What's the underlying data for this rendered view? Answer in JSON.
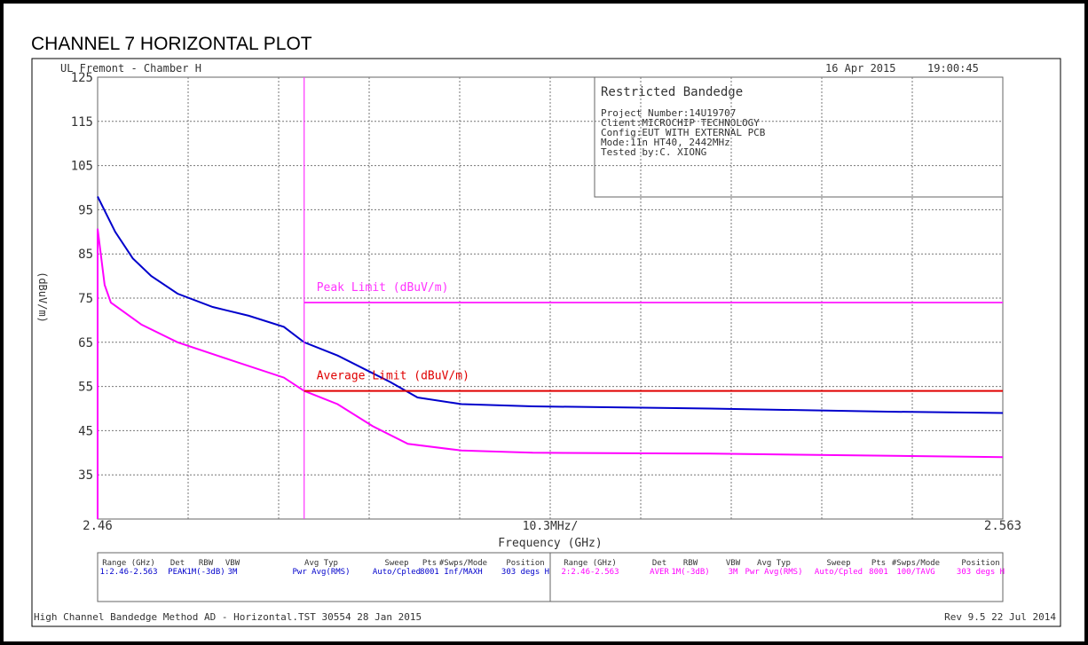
{
  "title": "CHANNEL 7 HORIZONTAL PLOT",
  "chart_data": {
    "type": "line",
    "header_left": "UL Fremont - Chamber H",
    "date": "16 Apr 2015",
    "time": "19:00:45",
    "info_title": "Restricted Bandedge",
    "info_lines": [
      "Project Number:14U19707",
      "Client:MICROCHIP TECHNOLOGY",
      "Config:EUT WITH EXTERNAL PCB",
      "Mode:11n HT40, 2442MHz",
      "Tested by:C. XIONG"
    ],
    "xlabel": "Frequency (GHz)",
    "ylabel": "(dBuV/m)",
    "xlim": [
      2.46,
      2.563
    ],
    "xticks": [
      2.46,
      2.563
    ],
    "xdiv": {
      "value": 0.0103,
      "label": "10.3MHz/"
    },
    "ylim": [
      25,
      125
    ],
    "yticks": [
      35,
      45,
      55,
      65,
      75,
      85,
      95,
      105,
      115,
      125
    ],
    "grid": true,
    "bandedge": {
      "x": 2.4835,
      "color": "#ff33ff"
    },
    "limits": [
      {
        "name": "Peak Limit (dBuV/m)",
        "value": 74,
        "color": "#ff33ff"
      },
      {
        "name": "Average Limit (dBuV/m)",
        "value": 54,
        "color": "#e00000"
      }
    ],
    "series": [
      {
        "color": "#0000cc",
        "x": [
          2.46,
          2.462,
          2.464,
          2.4661,
          2.4691,
          2.4731,
          2.4772,
          2.4812,
          2.4835,
          2.4873,
          2.4913,
          2.4933,
          2.4964,
          2.5014,
          2.5095,
          2.5297,
          2.5499,
          2.563
        ],
        "values": [
          98,
          90,
          84,
          80,
          76,
          73,
          71,
          68.5,
          65,
          62,
          58,
          56,
          52.5,
          51,
          50.5,
          50,
          49.3,
          49
        ]
      },
      {
        "color": "#ff00ff",
        "x": [
          2.46,
          2.46,
          2.4608,
          2.4615,
          2.465,
          2.4691,
          2.4751,
          2.4812,
          2.4835,
          2.4873,
          2.4913,
          2.4953,
          2.5014,
          2.5095,
          2.5297,
          2.563
        ],
        "values": [
          25,
          90.7,
          78,
          74,
          69,
          65,
          61,
          57,
          54,
          51,
          46,
          42,
          40.5,
          40,
          39.8,
          39
        ]
      }
    ]
  },
  "settings_table": {
    "headers": [
      "Range (GHz)",
      "Det",
      "RBW",
      "VBW",
      "Avg Typ",
      "Sweep",
      "Pts",
      "#Swps/Mode",
      "Position"
    ],
    "rows": [
      [
        "1:2.46-2.563",
        "PEAK",
        "1M(-3dB)",
        "3M",
        "Pwr Avg(RMS)",
        "Auto/Cpled",
        "8001",
        "Inf/MAXH",
        "303 degs H"
      ],
      [
        "2:2.46-2.563",
        "AVER",
        "1M(-3dB)",
        "3M",
        "Pwr Avg(RMS)",
        "Auto/Cpled",
        "8001",
        "100/TAVG",
        "303 degs H"
      ]
    ],
    "row_colors": [
      "#0000cc",
      "#ff00ff"
    ]
  },
  "footer_left": "High Channel Bandedge Method AD - Horizontal.TST 30554 28 Jan 2015",
  "footer_right": "Rev 9.5 22 Jul 2014"
}
